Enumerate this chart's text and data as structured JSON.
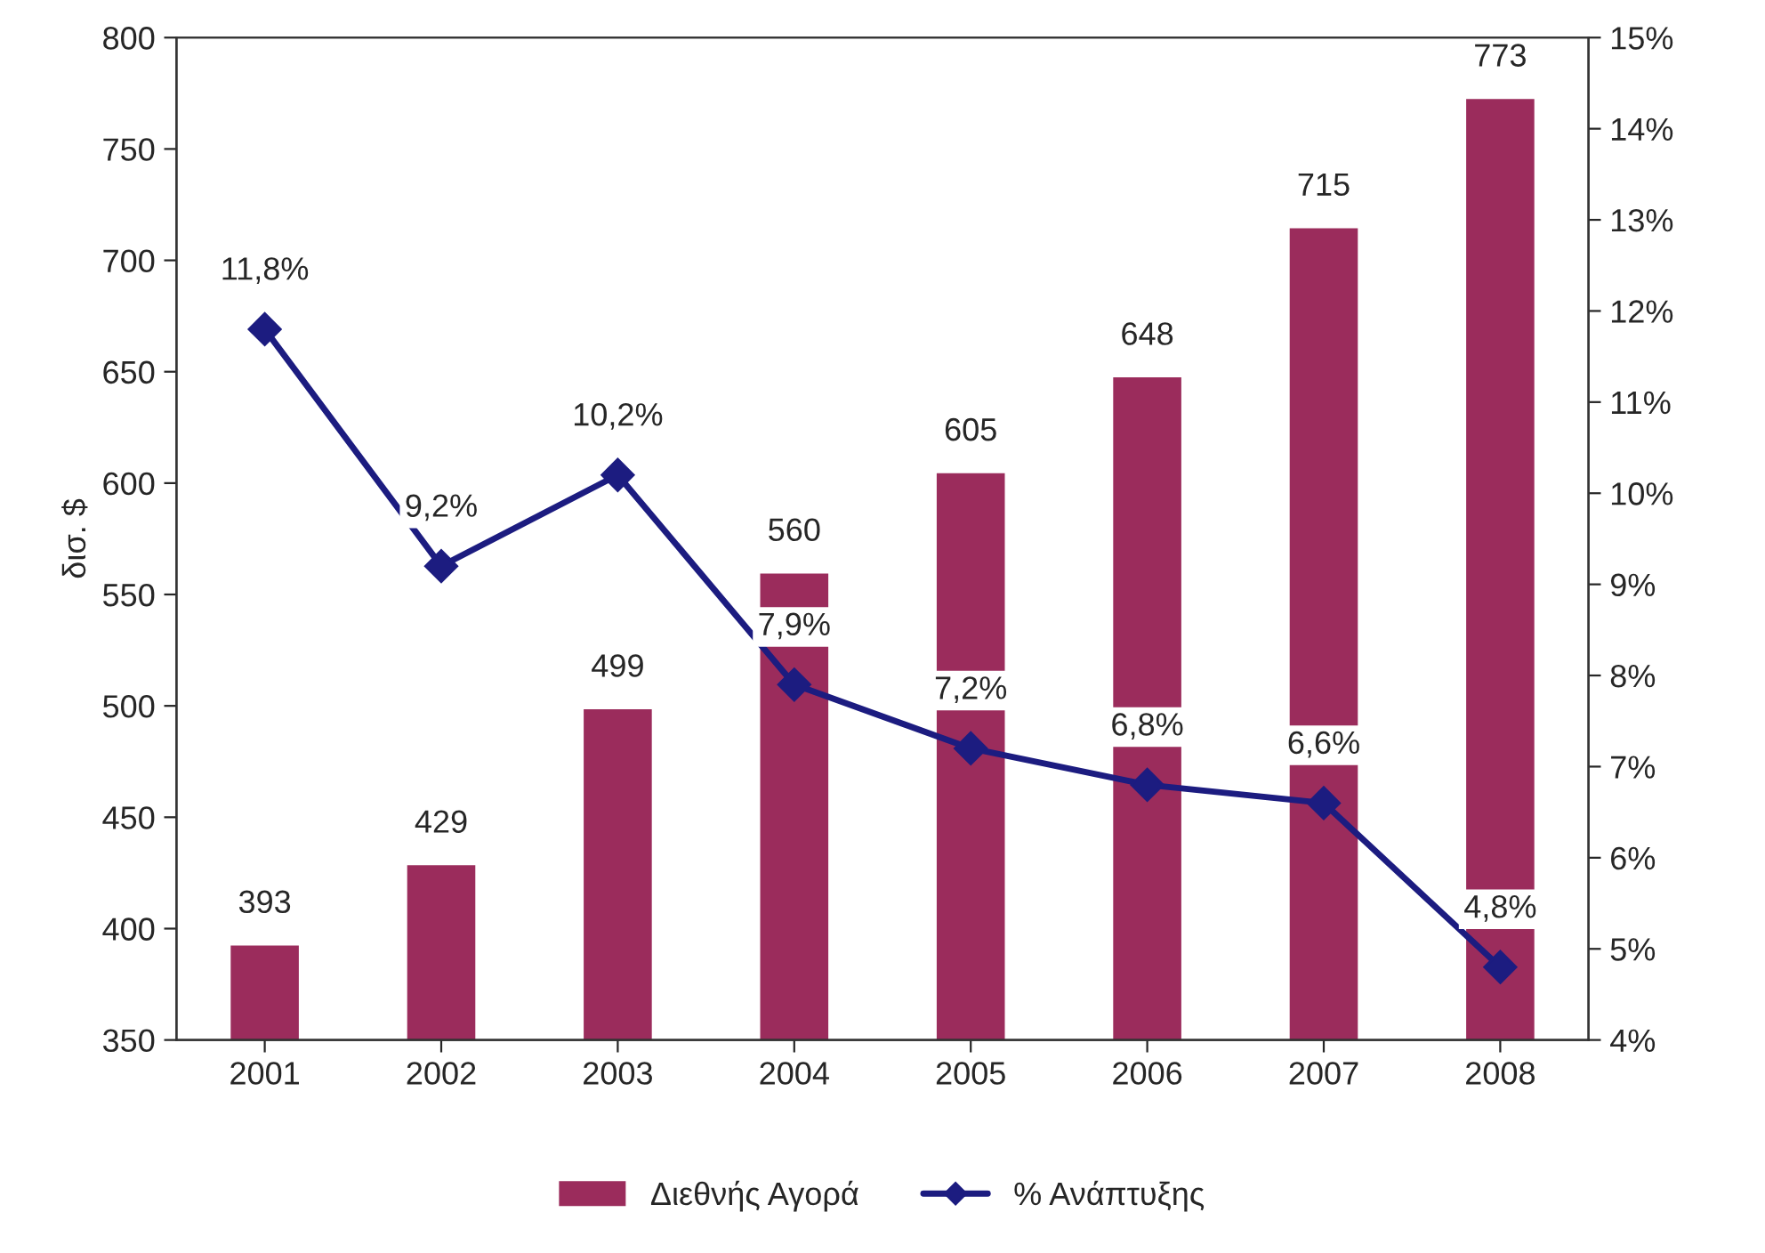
{
  "chart_data": {
    "type": "bar",
    "ylabel": "δισ. $",
    "categories": [
      "2001",
      "2002",
      "2003",
      "2004",
      "2005",
      "2006",
      "2007",
      "2008"
    ],
    "series": [
      {
        "name": "Διεθνής Αγορά",
        "color": "#9b2c5c",
        "values": [
          393,
          429,
          499,
          560,
          605,
          648,
          715,
          773
        ],
        "value_labels": [
          "393",
          "429",
          "499",
          "560",
          "605",
          "648",
          "715",
          "773"
        ]
      },
      {
        "name": "% Ανάπτυξης",
        "type": "line",
        "axis": "y2",
        "color": "#1c1c80",
        "marker": "diamond",
        "values": [
          11.8,
          9.2,
          10.2,
          7.9,
          7.2,
          6.8,
          6.6,
          4.8
        ],
        "value_labels": [
          "11,8%",
          "9,2%",
          "10,2%",
          "7,9%",
          "7,2%",
          "6,8%",
          "6,6%",
          "4,8%"
        ]
      }
    ],
    "ylim": [
      350,
      800
    ],
    "yticks": [
      350,
      400,
      450,
      500,
      550,
      600,
      650,
      700,
      750,
      800
    ],
    "y2lim": [
      4,
      15
    ],
    "y2ticks": [
      {
        "value": 4,
        "label": "4%"
      },
      {
        "value": 5,
        "label": "5%"
      },
      {
        "value": 6,
        "label": "6%"
      },
      {
        "value": 7,
        "label": "7%"
      },
      {
        "value": 8,
        "label": "8%"
      },
      {
        "value": 9,
        "label": "9%"
      },
      {
        "value": 10,
        "label": "10%"
      },
      {
        "value": 11,
        "label": "11%"
      },
      {
        "value": 12,
        "label": "12%"
      },
      {
        "value": 13,
        "label": "13%"
      },
      {
        "value": 14,
        "label": "14%"
      },
      {
        "value": 15,
        "label": "15%"
      }
    ],
    "grid": false,
    "legend": "bottom"
  }
}
